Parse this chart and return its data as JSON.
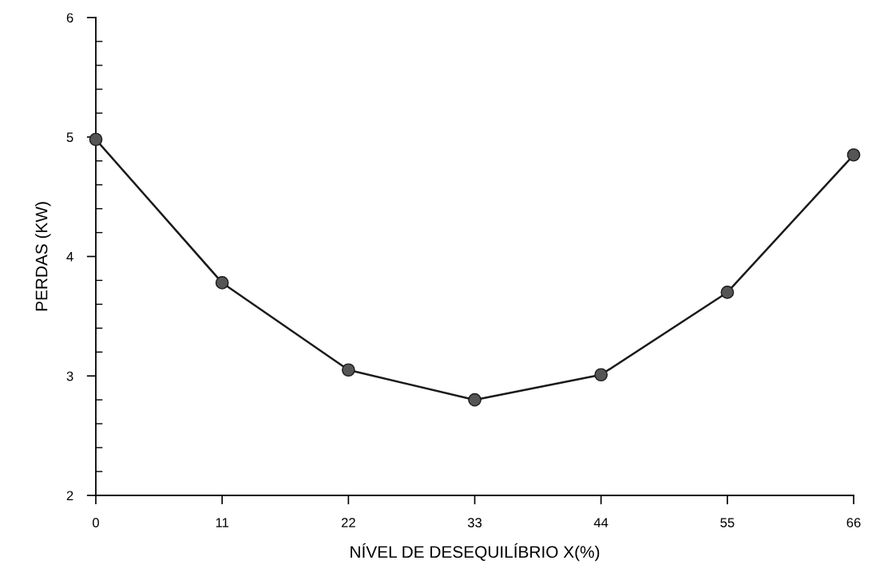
{
  "chart_data": {
    "type": "line",
    "xlabel": "NÍVEL DE DESEQUILÍBRIO X(%)",
    "ylabel": "PERDAS (KW)",
    "x": [
      0,
      11,
      22,
      33,
      44,
      55,
      66
    ],
    "series": [
      {
        "color": "#1a1a1a",
        "values": [
          4.98,
          3.78,
          3.05,
          2.8,
          3.01,
          3.7,
          4.85
        ]
      }
    ],
    "xlim": [
      0,
      66
    ],
    "xticks": [
      0,
      11,
      22,
      33,
      44,
      55,
      66
    ],
    "ylim": [
      2,
      6
    ],
    "yticks": [
      2,
      3,
      4,
      5,
      6
    ],
    "grid": false,
    "marker": "circle",
    "line_style": "solid"
  }
}
